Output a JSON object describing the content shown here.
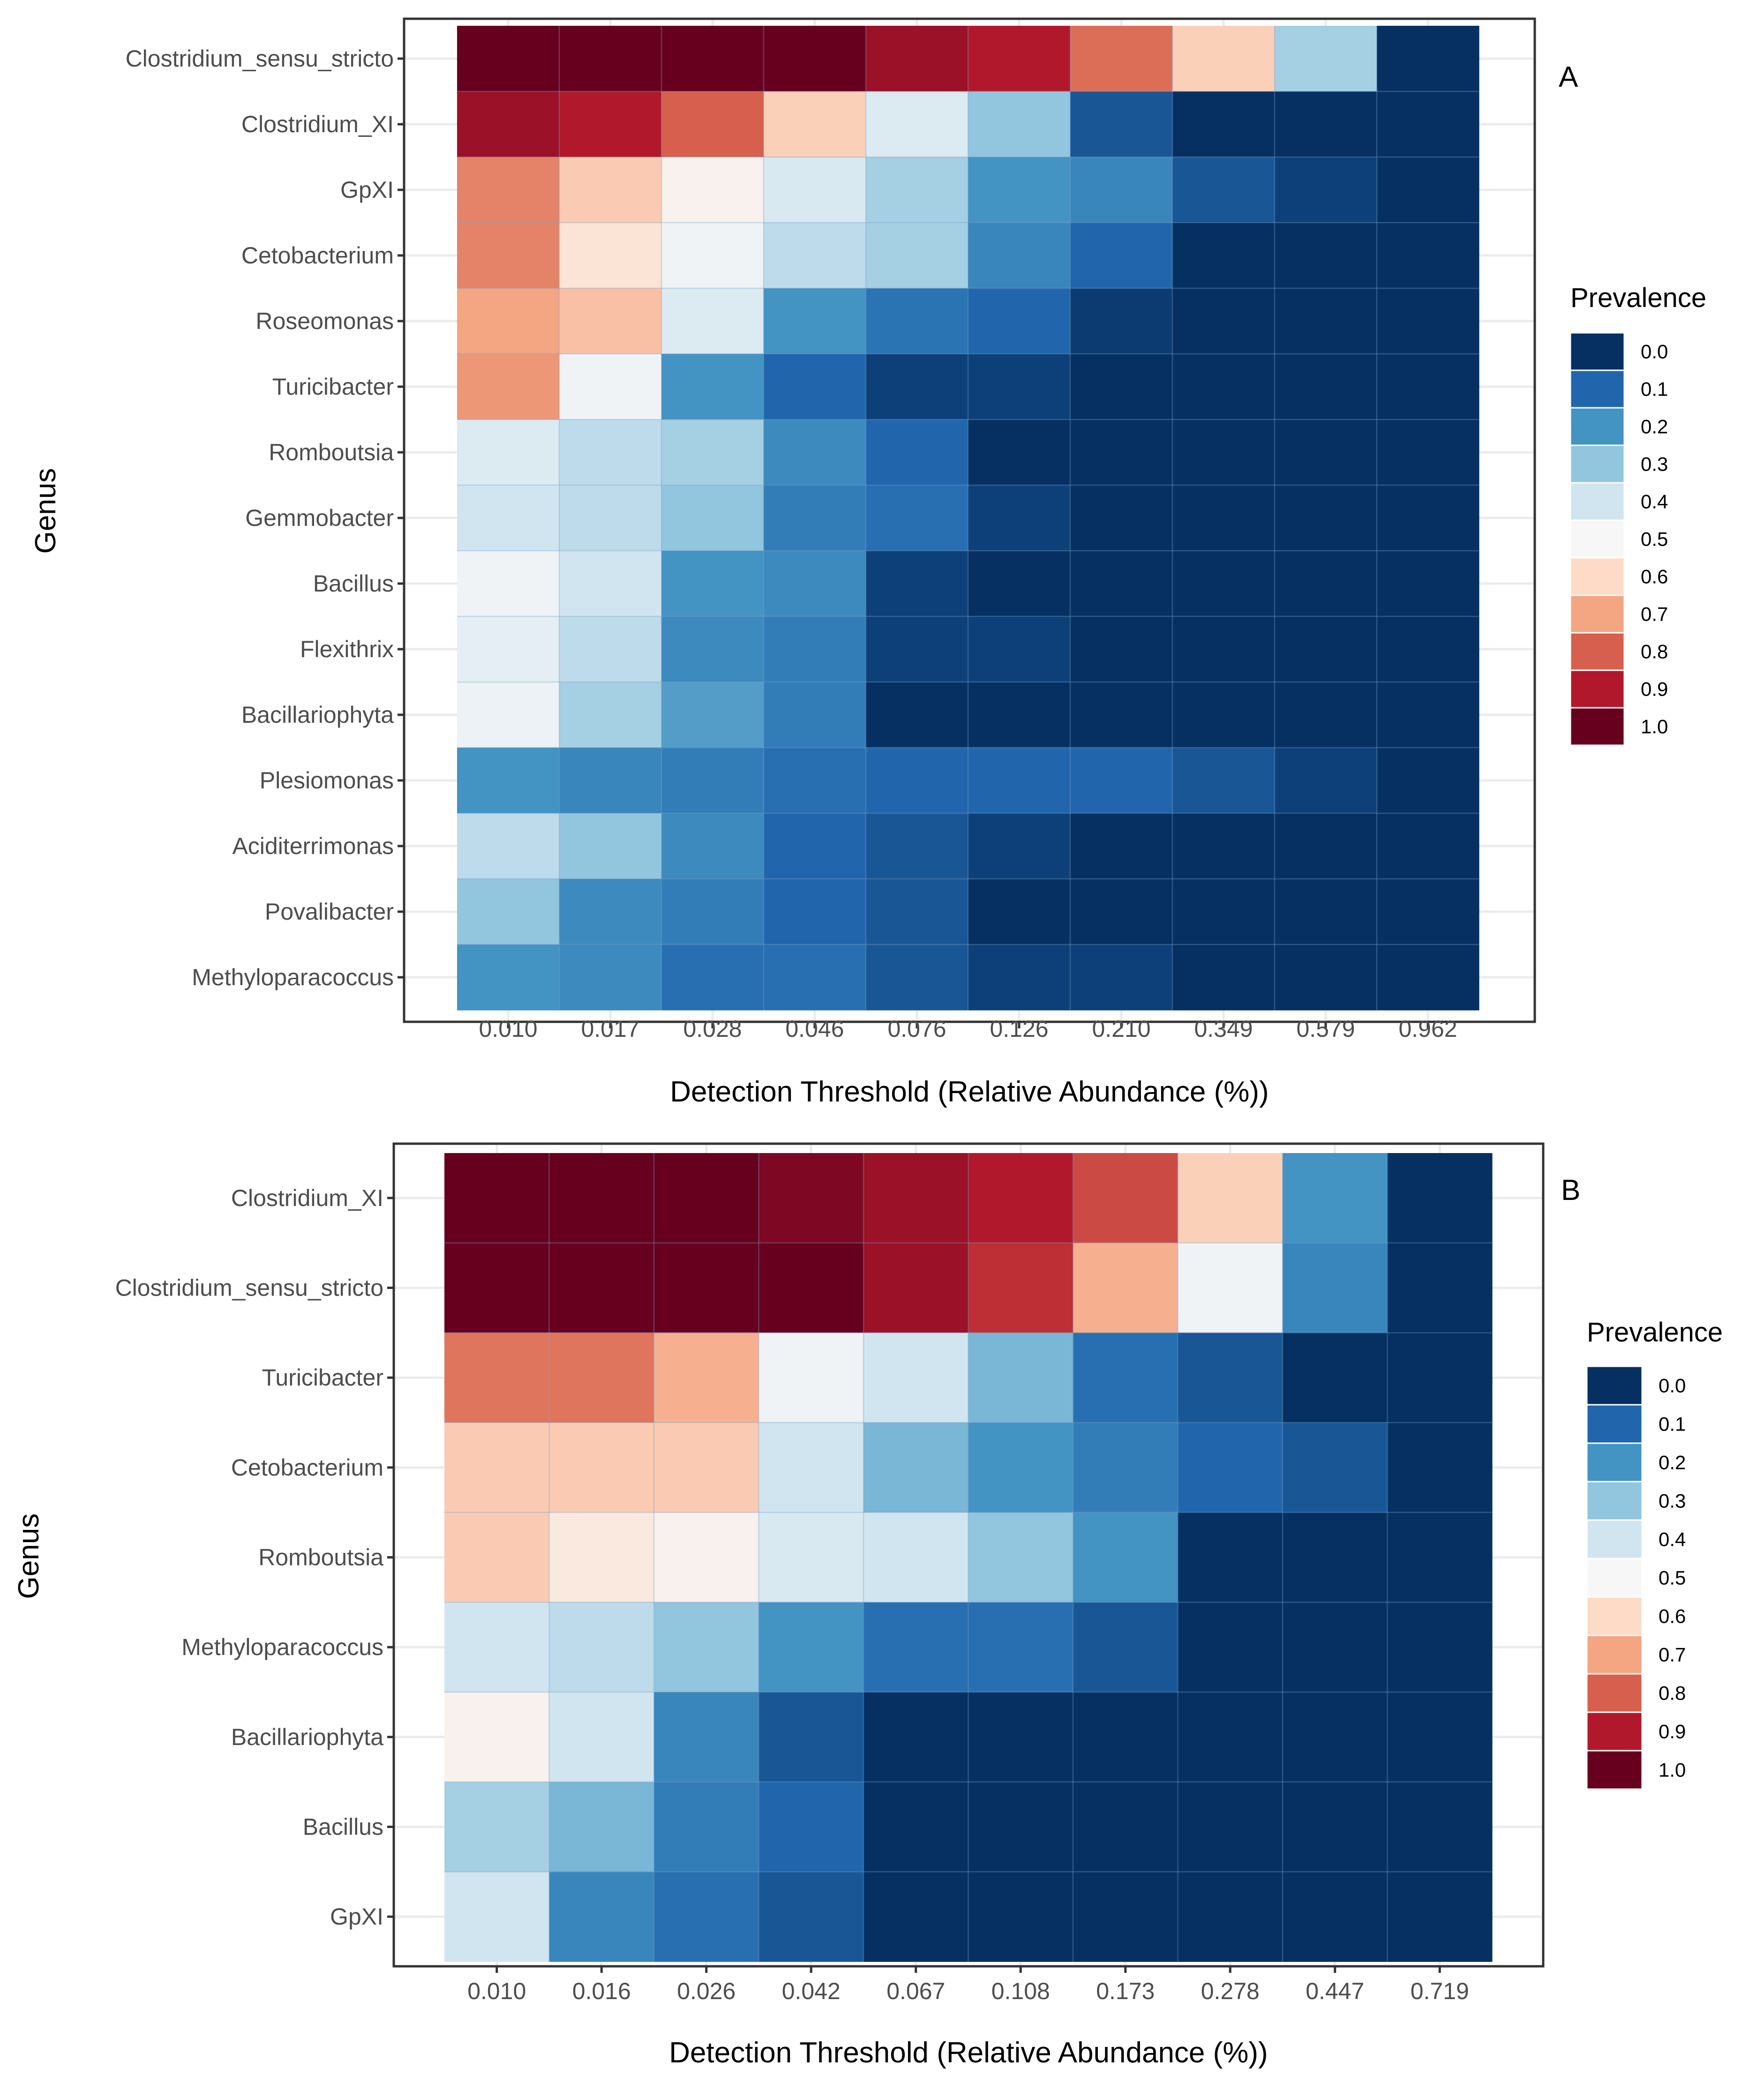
{
  "chart_data": [
    {
      "type": "heatmap",
      "panel_label": "A",
      "xlabel": "Detection Threshold (Relative Abundance (%))",
      "ylabel": "Genus",
      "legend_title": "Prevalence",
      "legend_ticks": [
        "0.0",
        "0.1",
        "0.2",
        "0.3",
        "0.4",
        "0.5",
        "0.6",
        "0.7",
        "0.8",
        "0.9",
        "1.0"
      ],
      "value_range": [
        0,
        1
      ],
      "x": [
        "0.010",
        "0.017",
        "0.028",
        "0.046",
        "0.076",
        "0.126",
        "0.210",
        "0.349",
        "0.579",
        "0.962"
      ],
      "y": [
        "Clostridium_sensu_stricto",
        "Clostridium_XI",
        "GpXI",
        "Cetobacterium",
        "Roseomonas",
        "Turicibacter",
        "Romboutsia",
        "Gemmobacter",
        "Bacillus",
        "Flexithrix",
        "Bacillariophyta",
        "Plesiomonas",
        "Aciditerrimonas",
        "Povalibacter",
        "Methyloparacoccus"
      ],
      "values": [
        [
          1.0,
          1.0,
          1.0,
          1.0,
          0.93,
          0.9,
          0.78,
          0.62,
          0.33,
          0.0
        ],
        [
          0.93,
          0.9,
          0.8,
          0.62,
          0.43,
          0.3,
          0.07,
          0.0,
          0.0,
          0.0
        ],
        [
          0.75,
          0.63,
          0.52,
          0.42,
          0.33,
          0.2,
          0.17,
          0.07,
          0.03,
          0.0
        ],
        [
          0.75,
          0.57,
          0.48,
          0.37,
          0.33,
          0.17,
          0.1,
          0.0,
          0.0,
          0.0
        ],
        [
          0.7,
          0.65,
          0.43,
          0.2,
          0.13,
          0.1,
          0.02,
          0.0,
          0.0,
          0.0
        ],
        [
          0.72,
          0.48,
          0.2,
          0.1,
          0.03,
          0.03,
          0.0,
          0.0,
          0.0,
          0.0
        ],
        [
          0.43,
          0.37,
          0.33,
          0.18,
          0.1,
          0.0,
          0.0,
          0.0,
          0.0,
          0.0
        ],
        [
          0.4,
          0.37,
          0.3,
          0.15,
          0.12,
          0.03,
          0.0,
          0.0,
          0.0,
          0.0
        ],
        [
          0.48,
          0.4,
          0.2,
          0.18,
          0.03,
          0.0,
          0.0,
          0.0,
          0.0,
          0.0
        ],
        [
          0.45,
          0.37,
          0.18,
          0.15,
          0.03,
          0.03,
          0.0,
          0.0,
          0.0,
          0.0
        ],
        [
          0.47,
          0.33,
          0.22,
          0.15,
          0.0,
          0.0,
          0.0,
          0.0,
          0.0,
          0.0
        ],
        [
          0.2,
          0.17,
          0.15,
          0.12,
          0.1,
          0.1,
          0.1,
          0.07,
          0.03,
          0.0
        ],
        [
          0.37,
          0.3,
          0.18,
          0.1,
          0.07,
          0.03,
          0.0,
          0.0,
          0.0,
          0.0
        ],
        [
          0.3,
          0.18,
          0.15,
          0.1,
          0.07,
          0.0,
          0.0,
          0.0,
          0.0,
          0.0
        ],
        [
          0.2,
          0.18,
          0.12,
          0.12,
          0.07,
          0.03,
          0.03,
          0.0,
          0.0,
          0.0
        ]
      ]
    },
    {
      "type": "heatmap",
      "panel_label": "B",
      "xlabel": "Detection Threshold (Relative Abundance (%))",
      "ylabel": "Genus",
      "legend_title": "Prevalence",
      "legend_ticks": [
        "0.0",
        "0.1",
        "0.2",
        "0.3",
        "0.4",
        "0.5",
        "0.6",
        "0.7",
        "0.8",
        "0.9",
        "1.0"
      ],
      "value_range": [
        0,
        1
      ],
      "x": [
        "0.010",
        "0.016",
        "0.026",
        "0.042",
        "0.067",
        "0.108",
        "0.173",
        "0.278",
        "0.447",
        "0.719"
      ],
      "y": [
        "Clostridium_XI",
        "Clostridium_sensu_stricto",
        "Turicibacter",
        "Cetobacterium",
        "Romboutsia",
        "Methyloparacoccus",
        "Bacillariophyta",
        "Bacillus",
        "GpXI"
      ],
      "values": [
        [
          1.0,
          1.0,
          1.0,
          0.97,
          0.93,
          0.9,
          0.83,
          0.62,
          0.2,
          0.0
        ],
        [
          1.0,
          1.0,
          1.0,
          1.0,
          0.93,
          0.87,
          0.68,
          0.48,
          0.17,
          0.0
        ],
        [
          0.77,
          0.77,
          0.68,
          0.48,
          0.4,
          0.27,
          0.12,
          0.07,
          0.0,
          0.0
        ],
        [
          0.63,
          0.63,
          0.63,
          0.4,
          0.27,
          0.2,
          0.15,
          0.1,
          0.07,
          0.0
        ],
        [
          0.63,
          0.55,
          0.52,
          0.42,
          0.4,
          0.3,
          0.2,
          0.0,
          0.0,
          0.0
        ],
        [
          0.4,
          0.37,
          0.3,
          0.2,
          0.12,
          0.12,
          0.07,
          0.0,
          0.0,
          0.0
        ],
        [
          0.52,
          0.4,
          0.17,
          0.07,
          0.0,
          0.0,
          0.0,
          0.0,
          0.0,
          0.0
        ],
        [
          0.33,
          0.27,
          0.15,
          0.1,
          0.0,
          0.0,
          0.0,
          0.0,
          0.0,
          0.0
        ],
        [
          0.4,
          0.17,
          0.12,
          0.07,
          0.0,
          0.0,
          0.0,
          0.0,
          0.0,
          0.0
        ]
      ]
    }
  ],
  "colors": {
    "palette_low_to_high": [
      "#053061",
      "#2166ac",
      "#4393c3",
      "#92c5de",
      "#d1e5f0",
      "#f7f7f7",
      "#fddbc7",
      "#f4a582",
      "#d6604d",
      "#b2182b",
      "#67001f"
    ],
    "grid": "#ebebeb",
    "panel_border": "#333333",
    "axis_text": "#4d4d4d",
    "title_text": "#000000"
  }
}
